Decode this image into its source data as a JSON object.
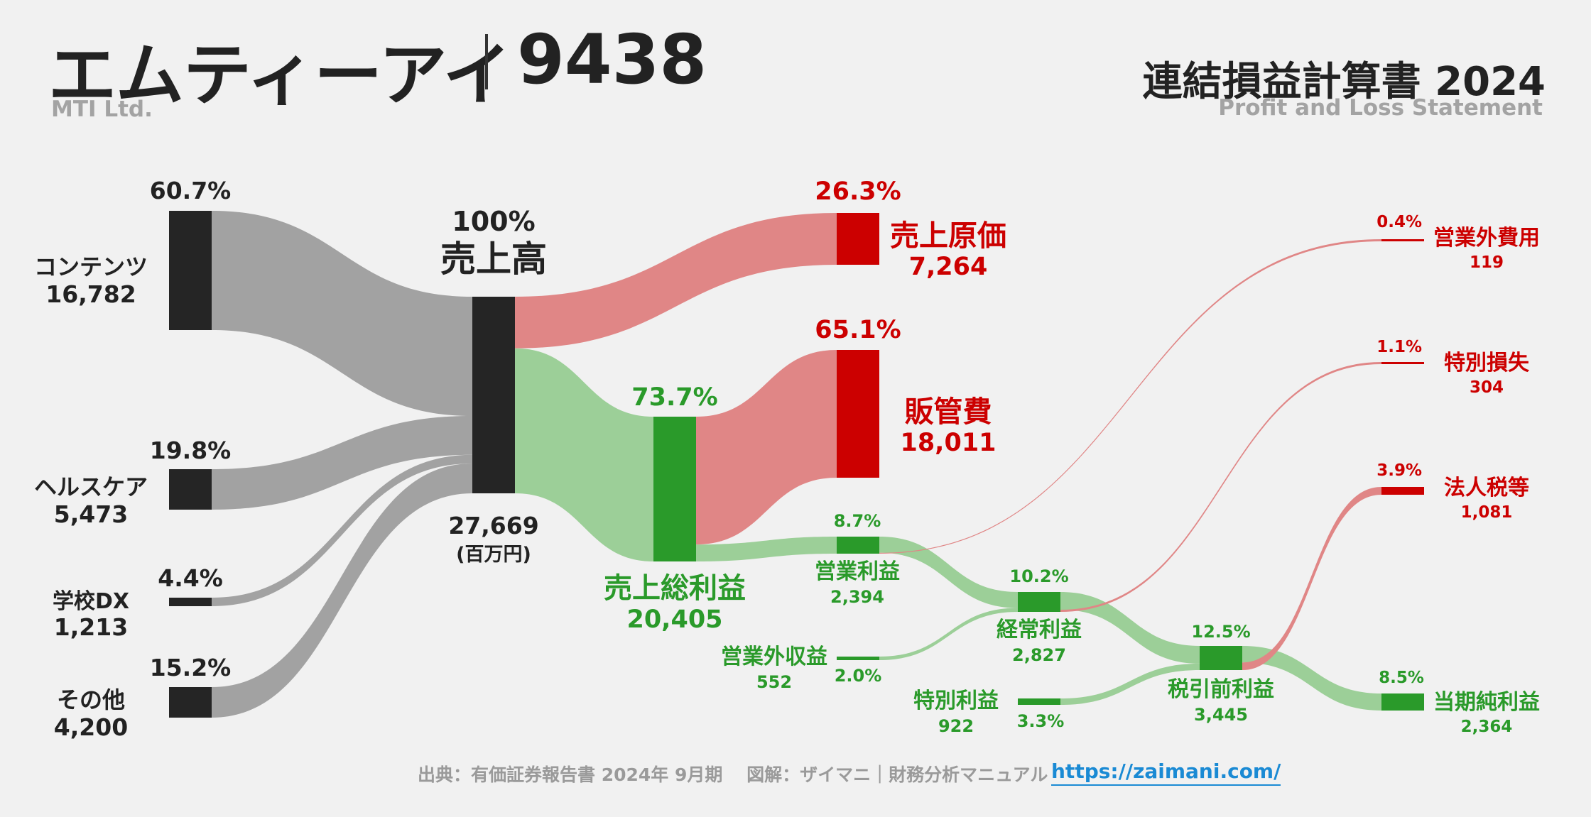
{
  "header": {
    "company": "エムティーアイ",
    "code": "9438",
    "company_en": "MTI Ltd.",
    "title": "連結損益計算書 2024",
    "title_en": "Profit and Loss Statement"
  },
  "chart_data": {
    "type": "sankey",
    "unit": "(百万円)",
    "nodes": [
      {
        "id": "contents",
        "label": "コンテンツ",
        "value": "16,782",
        "pct": "60.7%"
      },
      {
        "id": "health",
        "label": "ヘルスケア",
        "value": "5,473",
        "pct": "19.8%"
      },
      {
        "id": "school",
        "label": "学校DX",
        "value": "1,213",
        "pct": "4.4%"
      },
      {
        "id": "other",
        "label": "その他",
        "value": "4,200",
        "pct": "15.2%"
      },
      {
        "id": "revenue",
        "label": "売上高",
        "value": "27,669",
        "pct": "100%"
      },
      {
        "id": "cogs",
        "label": "売上原価",
        "value": "7,264",
        "pct": "26.3%"
      },
      {
        "id": "gross",
        "label": "売上総利益",
        "value": "20,405",
        "pct": "73.7%"
      },
      {
        "id": "sga",
        "label": "販管費",
        "value": "18,011",
        "pct": "65.1%"
      },
      {
        "id": "op",
        "label": "営業利益",
        "value": "2,394",
        "pct": "8.7%"
      },
      {
        "id": "nonop_inc",
        "label": "営業外収益",
        "value": "552",
        "pct": "2.0%"
      },
      {
        "id": "nonop_exp",
        "label": "営業外費用",
        "value": "119",
        "pct": "0.4%"
      },
      {
        "id": "ordinary",
        "label": "経常利益",
        "value": "2,827",
        "pct": "10.2%"
      },
      {
        "id": "ext_gain",
        "label": "特別利益",
        "value": "922",
        "pct": "3.3%"
      },
      {
        "id": "ext_loss",
        "label": "特別損失",
        "value": "304",
        "pct": "1.1%"
      },
      {
        "id": "pretax",
        "label": "税引前利益",
        "value": "3,445",
        "pct": "12.5%"
      },
      {
        "id": "tax",
        "label": "法人税等",
        "value": "1,081",
        "pct": "3.9%"
      },
      {
        "id": "net",
        "label": "当期純利益",
        "value": "2,364",
        "pct": "8.5%"
      }
    ],
    "links": [
      {
        "from": "contents",
        "to": "revenue",
        "value": 16782
      },
      {
        "from": "health",
        "to": "revenue",
        "value": 5473
      },
      {
        "from": "school",
        "to": "revenue",
        "value": 1213
      },
      {
        "from": "other",
        "to": "revenue",
        "value": 4200
      },
      {
        "from": "revenue",
        "to": "cogs",
        "value": 7264
      },
      {
        "from": "revenue",
        "to": "gross",
        "value": 20405
      },
      {
        "from": "gross",
        "to": "sga",
        "value": 18011
      },
      {
        "from": "gross",
        "to": "op",
        "value": 2394
      },
      {
        "from": "op",
        "to": "ordinary",
        "value": 2275
      },
      {
        "from": "op",
        "to": "nonop_exp",
        "value": 119
      },
      {
        "from": "nonop_inc",
        "to": "ordinary",
        "value": 552
      },
      {
        "from": "ordinary",
        "to": "pretax",
        "value": 2523
      },
      {
        "from": "ordinary",
        "to": "ext_loss",
        "value": 304
      },
      {
        "from": "ext_gain",
        "to": "pretax",
        "value": 922
      },
      {
        "from": "pretax",
        "to": "net",
        "value": 2364
      },
      {
        "from": "pretax",
        "to": "tax",
        "value": 1081
      }
    ],
    "colors": {
      "revenue_flow": "#a2a2a2",
      "cost_flow": "#e08686",
      "profit_flow": "#9ccf98",
      "revenue_node": "#252525",
      "cost_node": "#cc0000",
      "profit_node": "#2a9a2a"
    }
  },
  "footer": {
    "source": "出典：有価証券報告書 2024年 9月期　 図解：ザイマニ｜財務分析マニュアル",
    "link": "https://zaimani.com/"
  }
}
